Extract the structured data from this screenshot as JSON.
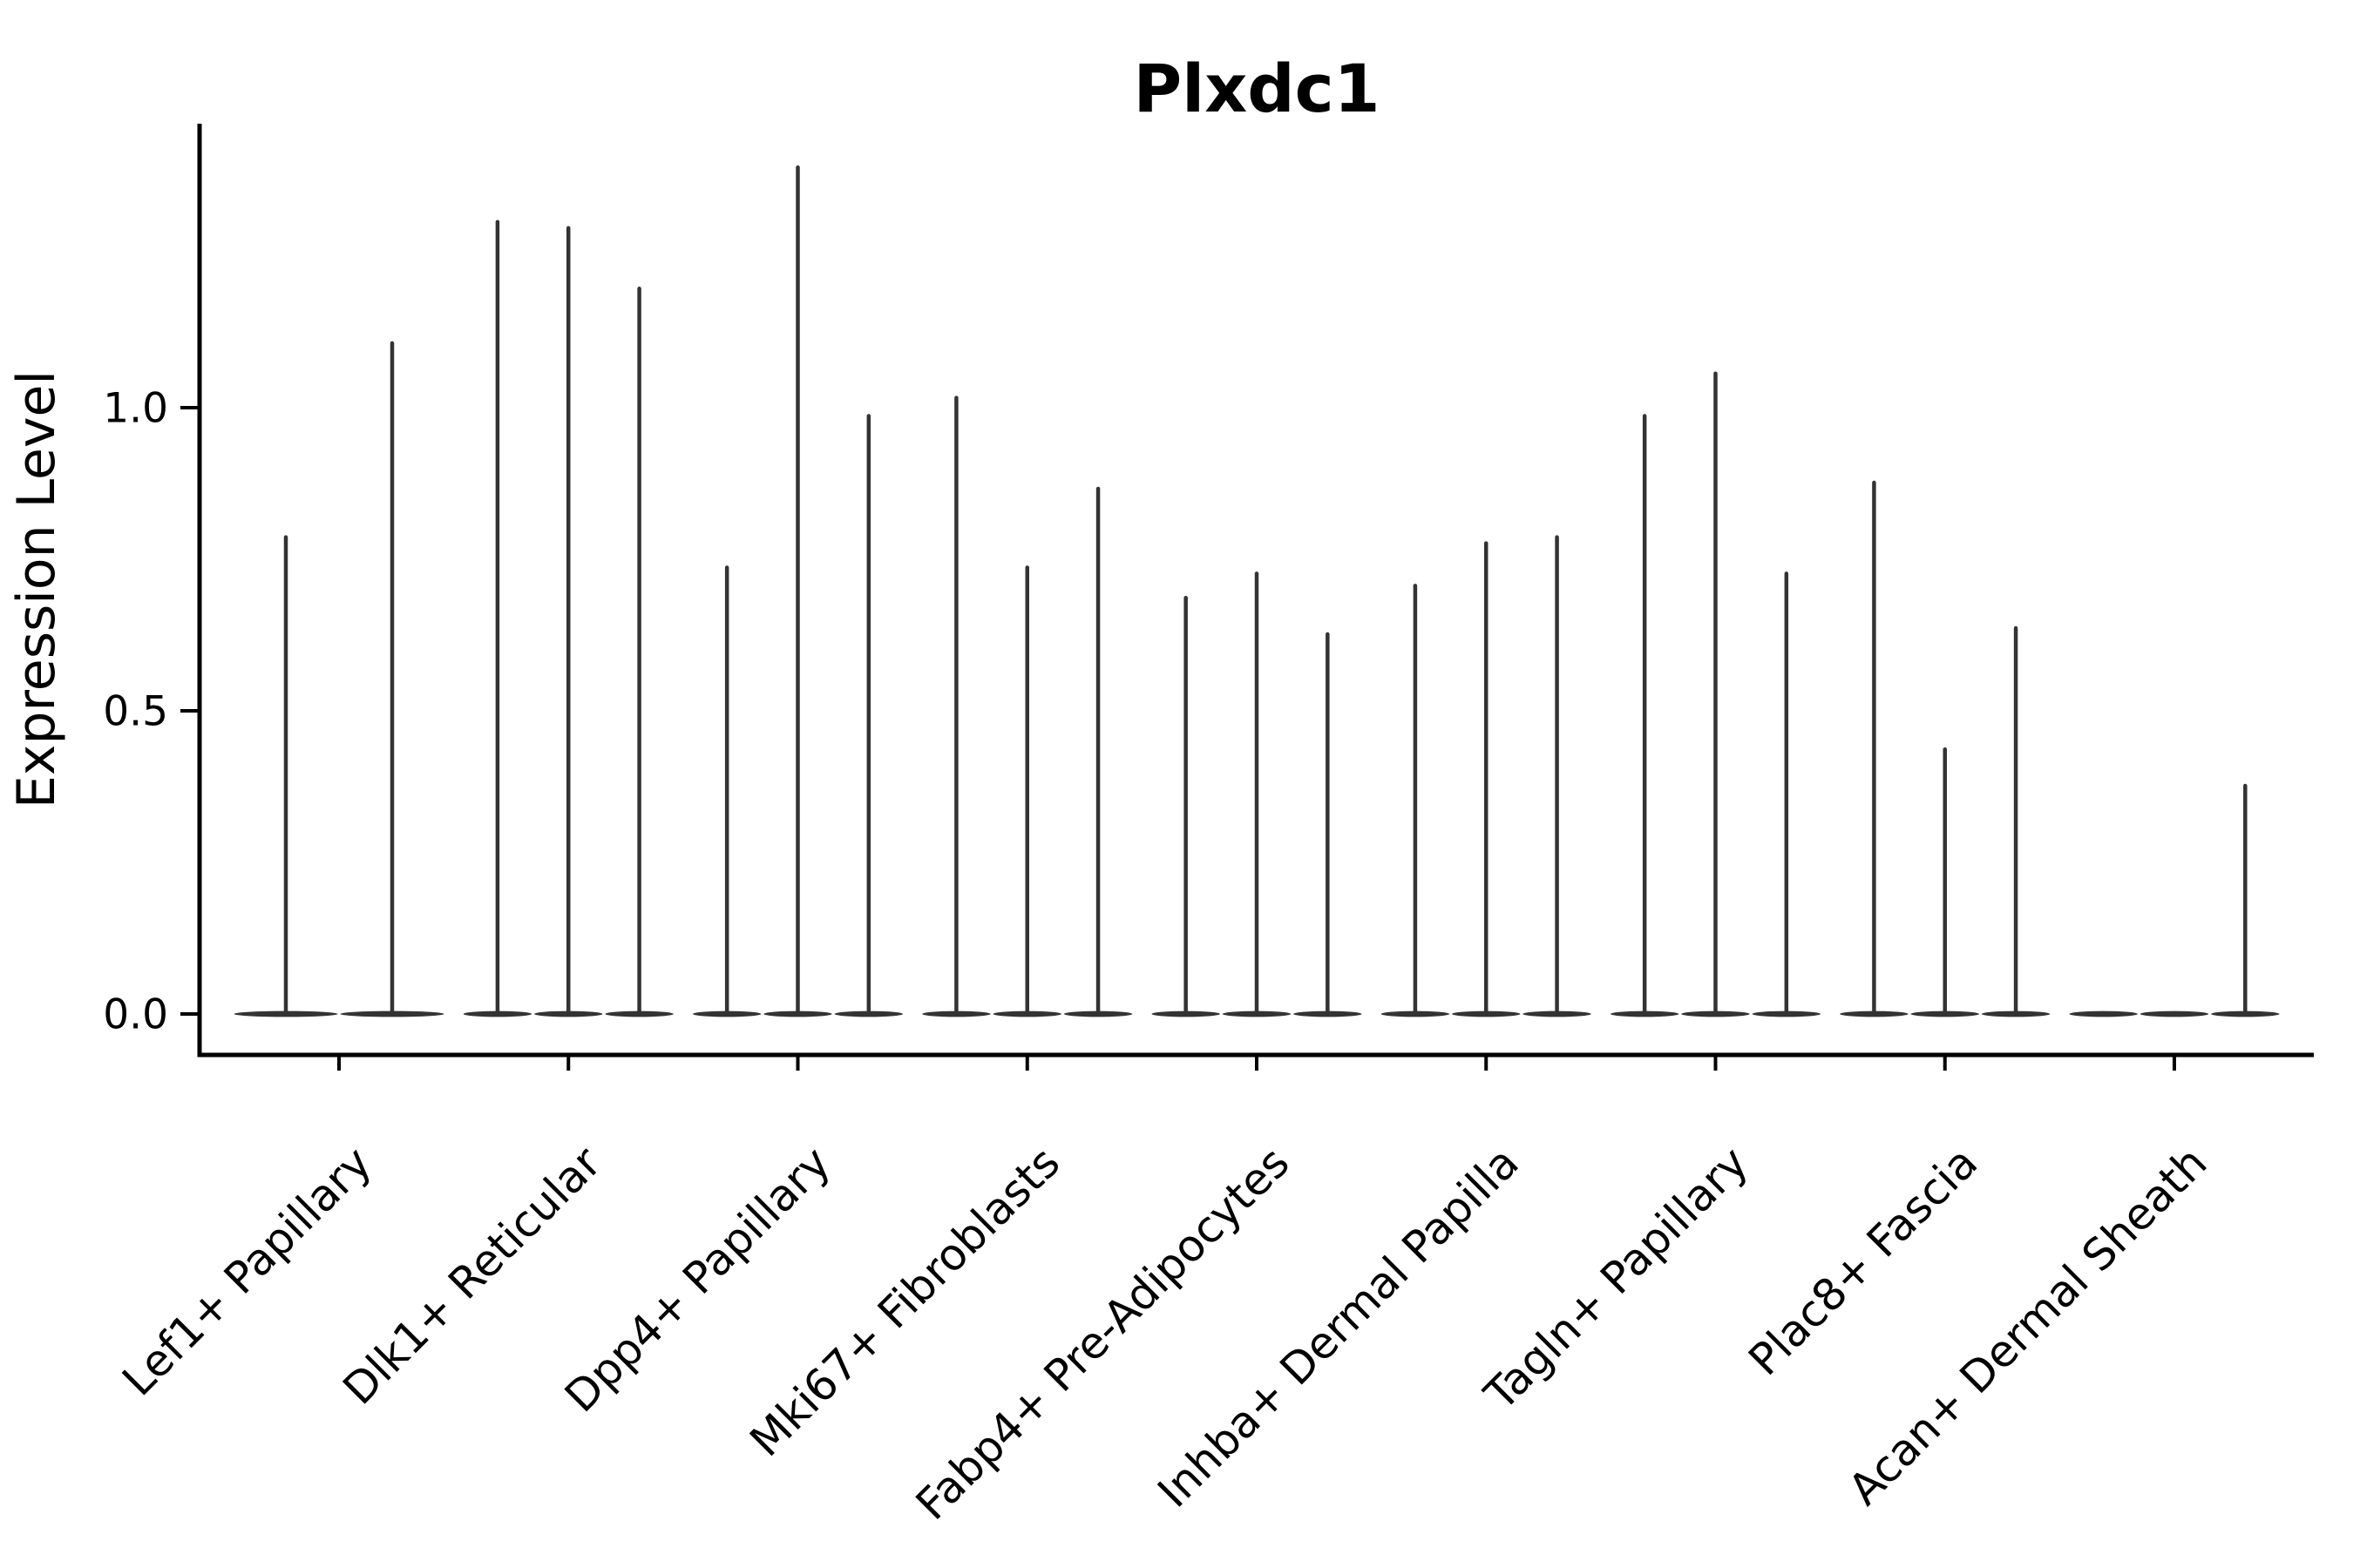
{
  "chart_data": {
    "type": "violin",
    "title": "Plxdc1",
    "xlabel": "",
    "ylabel": "Expression Level",
    "ylim": [
      0,
      1.47
    ],
    "grid": false,
    "legend": "none",
    "x_tick_rotation": 45,
    "yticks": [
      {
        "value": 0.0,
        "label": "0.0"
      },
      {
        "value": 0.5,
        "label": "0.5"
      },
      {
        "value": 1.0,
        "label": "1.0"
      }
    ],
    "categories": [
      {
        "label": "Lef1+ Papillary",
        "violin_max": [
          0.79,
          1.11
        ]
      },
      {
        "label": "Dlk1+ Reticular",
        "violin_max": [
          1.31,
          1.3,
          1.2
        ]
      },
      {
        "label": "Dpp4+ Papillary",
        "violin_max": [
          0.74,
          1.4,
          0.99
        ]
      },
      {
        "label": "Mki67+ Fibroblasts",
        "violin_max": [
          1.02,
          0.74,
          0.87
        ]
      },
      {
        "label": "Fabp4+ Pre-Adipocytes",
        "violin_max": [
          0.69,
          0.73,
          0.63
        ]
      },
      {
        "label": "Inhba+ Dermal Papilla",
        "violin_max": [
          0.71,
          0.78,
          0.79
        ]
      },
      {
        "label": "Tagln+ Papillary",
        "violin_max": [
          0.99,
          1.06,
          0.73
        ]
      },
      {
        "label": "Plac8+ Fascia",
        "violin_max": [
          0.88,
          0.44,
          0.64
        ]
      },
      {
        "label": "Acan+ Dermal Sheath",
        "violin_max": [
          0.0,
          0.0,
          0.38
        ]
      }
    ],
    "colors": {
      "violin_line": "#333333",
      "axis": "#000000",
      "text": "#000000",
      "background": "#ffffff"
    }
  }
}
